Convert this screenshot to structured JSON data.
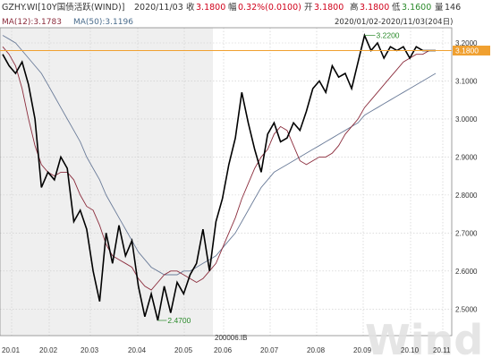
{
  "header": {
    "symbol": "GZHY.WI[10Y国债活跃(WIND)]",
    "date": "2020/11/03",
    "close_label": "收",
    "close_value": "3.1800",
    "change_label": "幅",
    "change_value": "0.32%(0.0100)",
    "open_label": "开",
    "open_value": "3.1800",
    "high_label": "高",
    "high_value": "3.1800",
    "low_label": "低",
    "low_value": "3.1600",
    "volume_label": "量",
    "volume_value": "146",
    "ma12_text": "MA(12):3.1783",
    "ma50_text": "MA(50):3.1196",
    "range_text": "2020/01/02-2020/11/03(204日)"
  },
  "chart_data": {
    "type": "line",
    "y_range": [
      2.43,
      3.24
    ],
    "y_ticks": [
      "3.2000",
      "3.1000",
      "3.0000",
      "2.9000",
      "2.8000",
      "2.7000",
      "2.6000",
      "2.5000"
    ],
    "y_tick_values": [
      3.2,
      3.1,
      3.0,
      2.9,
      2.8,
      2.7,
      2.6,
      2.5
    ],
    "x_ticks": [
      "20.01",
      "20.02",
      "20.03",
      "20.04",
      "20.05",
      "20.06",
      "20.07",
      "20.08",
      "20.09",
      "20.10",
      "20.11"
    ],
    "shaded_through": "20.05",
    "current_value_label": "3.1800",
    "current_value": 3.18,
    "high_annotation": {
      "label": "3.2200",
      "value": 3.22,
      "x": "20.10"
    },
    "low_annotation": {
      "label": "2.4700",
      "value": 2.47,
      "x": "20.04"
    },
    "contract_label": "200006.IB",
    "grid": true,
    "colors": {
      "price": "#000000",
      "ma12": "#8b2c3c",
      "ma50": "#6b7c99",
      "current": "#f0a030",
      "annotation": "#2a8a2a",
      "shade": "#efefef",
      "grid": "#c9c9c9"
    },
    "series": [
      {
        "name": "MA(12)",
        "values": [
          3.19,
          3.17,
          3.14,
          3.08,
          3.0,
          2.93,
          2.88,
          2.86,
          2.85,
          2.86,
          2.86,
          2.84,
          2.8,
          2.77,
          2.76,
          2.72,
          2.67,
          2.64,
          2.63,
          2.62,
          2.61,
          2.58,
          2.56,
          2.55,
          2.57,
          2.59,
          2.6,
          2.6,
          2.59,
          2.58,
          2.57,
          2.58,
          2.6,
          2.62,
          2.66,
          2.7,
          2.74,
          2.79,
          2.83,
          2.87,
          2.9,
          2.92,
          2.96,
          2.98,
          2.97,
          2.93,
          2.89,
          2.88,
          2.89,
          2.9,
          2.9,
          2.91,
          2.93,
          2.96,
          2.98,
          3.0,
          3.03,
          3.05,
          3.07,
          3.09,
          3.11,
          3.13,
          3.15,
          3.16,
          3.17,
          3.17,
          3.18,
          3.18
        ]
      },
      {
        "name": "MA(50)",
        "values": [
          3.22,
          3.21,
          3.2,
          3.18,
          3.16,
          3.14,
          3.12,
          3.09,
          3.06,
          3.03,
          3.0,
          2.97,
          2.94,
          2.9,
          2.87,
          2.84,
          2.8,
          2.77,
          2.74,
          2.71,
          2.68,
          2.65,
          2.63,
          2.61,
          2.6,
          2.59,
          2.59,
          2.59,
          2.6,
          2.6,
          2.61,
          2.62,
          2.63,
          2.64,
          2.66,
          2.68,
          2.7,
          2.73,
          2.76,
          2.79,
          2.82,
          2.84,
          2.86,
          2.87,
          2.88,
          2.89,
          2.9,
          2.91,
          2.92,
          2.93,
          2.94,
          2.95,
          2.96,
          2.97,
          2.98,
          2.99,
          3.01,
          3.02,
          3.03,
          3.04,
          3.05,
          3.06,
          3.07,
          3.08,
          3.09,
          3.1,
          3.11,
          3.12
        ]
      },
      {
        "name": "10Y国债活跃",
        "values": [
          3.17,
          3.14,
          3.12,
          3.15,
          3.09,
          3.0,
          2.82,
          2.86,
          2.84,
          2.9,
          2.87,
          2.73,
          2.76,
          2.71,
          2.6,
          2.52,
          2.7,
          2.62,
          2.72,
          2.64,
          2.68,
          2.56,
          2.48,
          2.54,
          2.47,
          2.56,
          2.49,
          2.57,
          2.54,
          2.59,
          2.62,
          2.71,
          2.6,
          2.73,
          2.79,
          2.88,
          2.95,
          3.07,
          2.99,
          2.92,
          2.86,
          2.96,
          2.99,
          2.94,
          2.95,
          2.99,
          2.97,
          3.02,
          3.08,
          3.1,
          3.07,
          3.14,
          3.11,
          3.12,
          3.08,
          3.15,
          3.22,
          3.18,
          3.2,
          3.16,
          3.19,
          3.18,
          3.19,
          3.16,
          3.19,
          3.18,
          3.18,
          3.18
        ]
      }
    ]
  },
  "watermark": "Wind"
}
